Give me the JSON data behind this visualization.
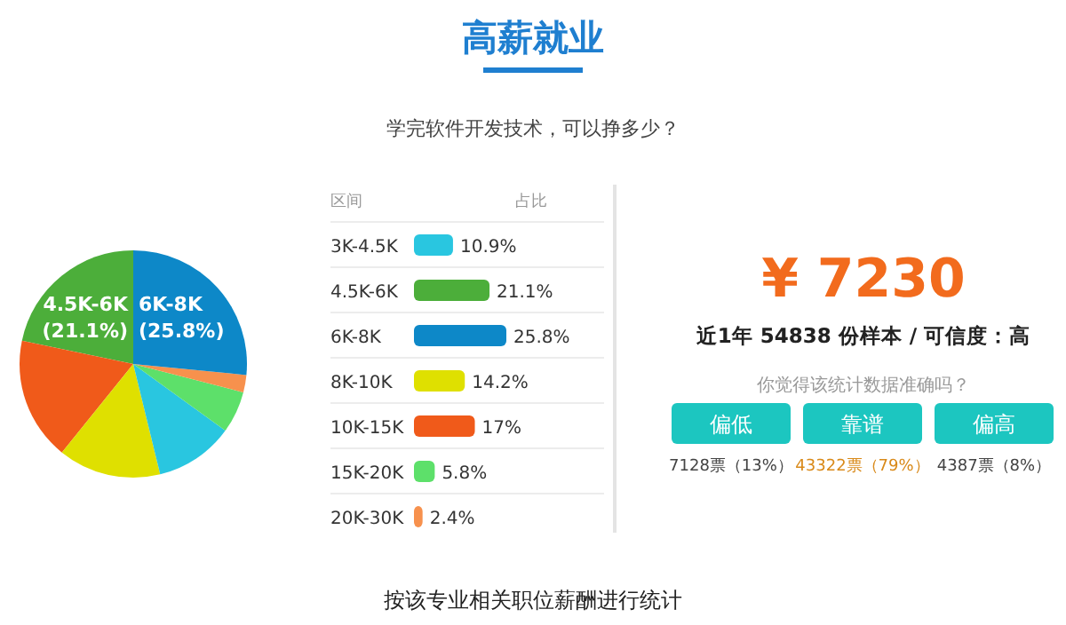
{
  "chart_data": [
    {
      "type": "pie",
      "title": "高薪就业",
      "subtitle": "学完软件开发技术，可以挣多少？",
      "categories": [
        null,
        null,
        null,
        null,
        null,
        null,
        null
      ],
      "values": [
        21.1,
        17,
        14.2,
        10.9,
        5.8,
        2.4,
        25.8
      ],
      "colors": [
        "#4cae3a",
        "#f05a1a",
        "#dfe000",
        "#29c6e0",
        "#5de06a",
        "#f7914d",
        "#0d88c8"
      ],
      "value_labels": [
        "4.5K-6K (21.1%)",
        null,
        null,
        null,
        null,
        null,
        "6K-8K (25.8%)"
      ],
      "annotations": [
        "按该专业相关职位薪酬进行统计"
      ]
    },
    {
      "type": "bar",
      "orientation": "horizontal",
      "ylabel": "区间",
      "xlabel": "占比",
      "categories": [
        "3K-4.5K",
        "4.5K-6K",
        "6K-8K",
        "8K-10K",
        "10K-15K",
        "15K-20K",
        "20K-30K"
      ],
      "values": [
        10.9,
        21.1,
        25.8,
        14.2,
        17,
        5.8,
        2.4
      ],
      "colors": [
        "#29c6e0",
        "#4cae3a",
        "#0d88c8",
        "#dfe000",
        "#f05a1a",
        "#5de06a",
        "#f7914d"
      ],
      "value_labels": [
        "10.9%",
        "21.1%",
        "25.8%",
        "14.2%",
        "17%",
        "5.8%",
        "2.4%"
      ]
    },
    {
      "type": "other",
      "annotations": [
        "¥ 7230",
        "近1年 54838 份样本 / 可信度：高",
        "你觉得该统计数据准确吗？",
        "偏低",
        "靠谱",
        "偏高",
        "7128票（13%）",
        "43322票（79%）",
        "4387票（8%）"
      ]
    }
  ]
}
